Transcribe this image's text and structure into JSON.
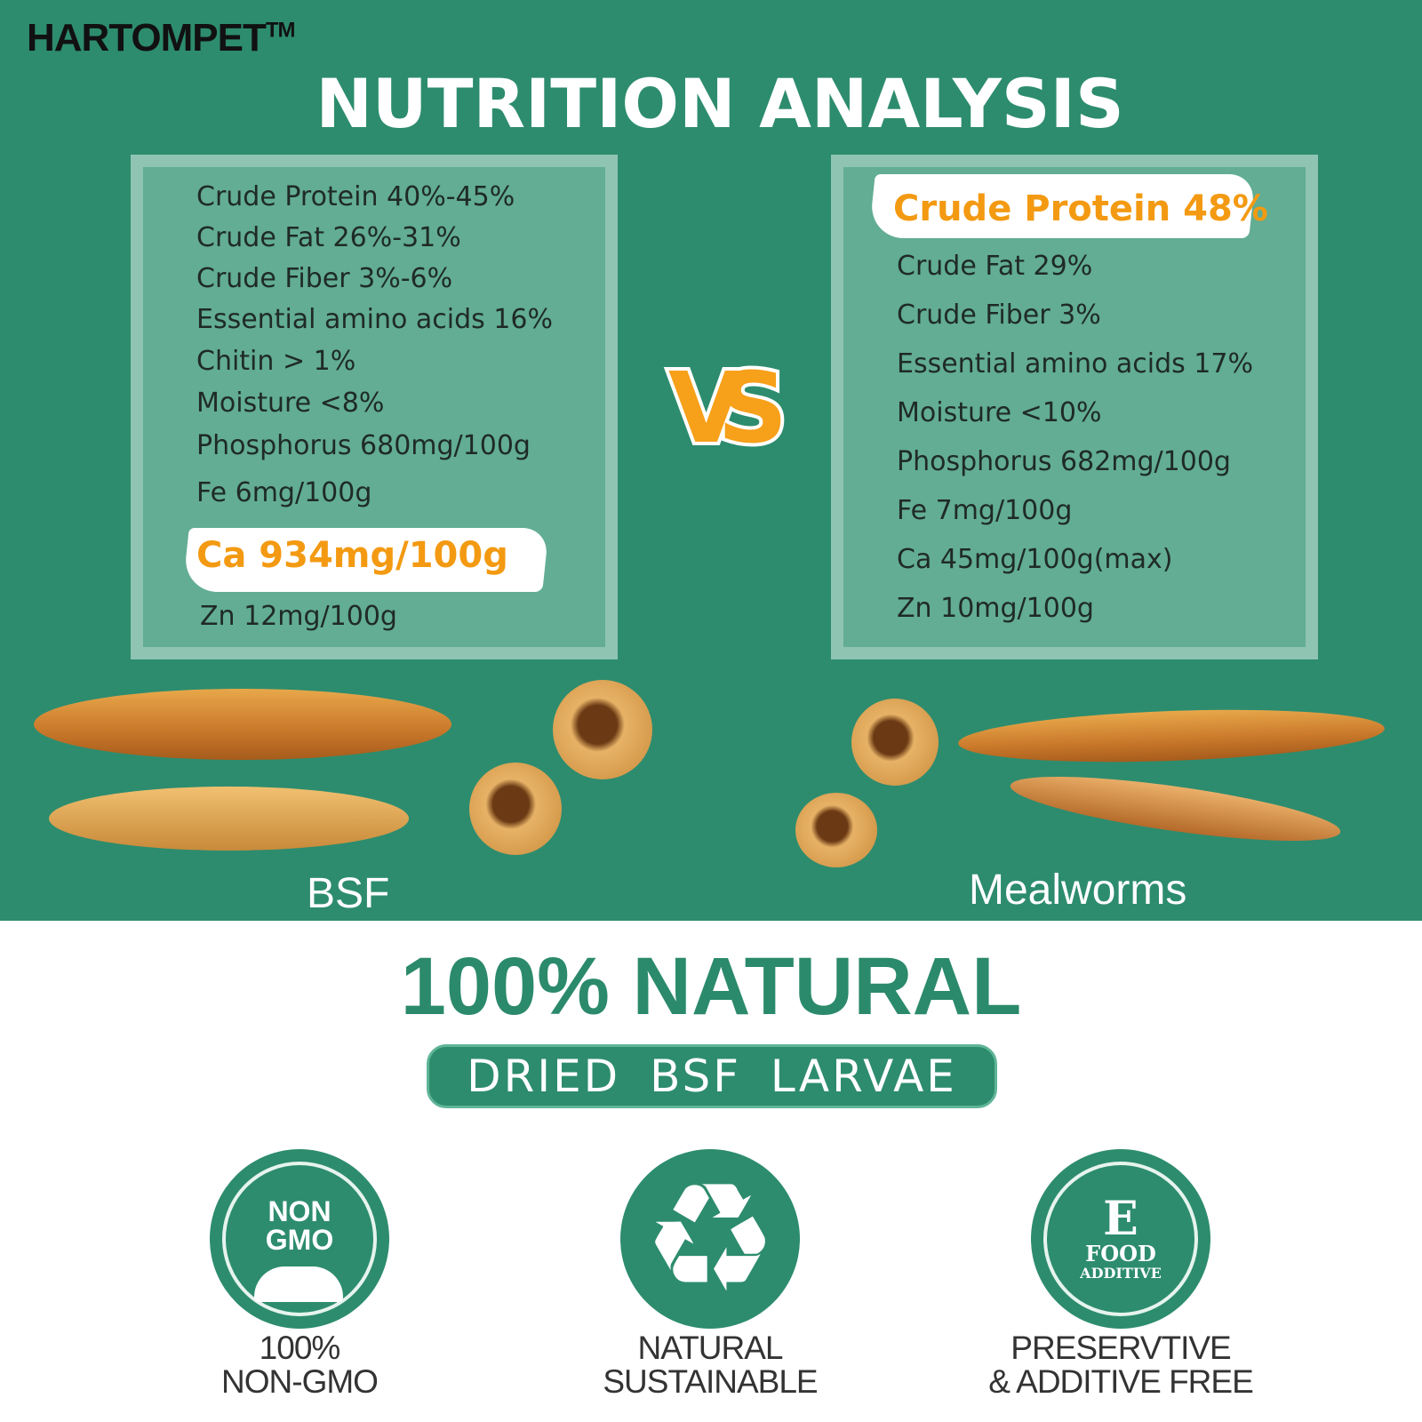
{
  "brand": {
    "name": "HARTOMPET",
    "tm": "TM"
  },
  "title": "NUTRITION ANALYSIS",
  "vs": "VS",
  "bsf": {
    "label": "BSF",
    "items": [
      "Crude Protein 40%-45%",
      "Crude Fat 26%-31%",
      "Crude Fiber 3%-6%",
      "Essential amino acids 16%",
      "Chitin  > 1%",
      "Moisture <8%",
      "Phosphorus 680mg/100g",
      "Fe 6mg/100g"
    ],
    "highlight": "Ca 934mg/100g",
    "last": "Zn 12mg/100g"
  },
  "mealworms": {
    "label": "Mealworms",
    "highlight": "Crude Protein 48%",
    "items": [
      "Crude Fat 29%",
      "Crude Fiber 3%",
      "Essential amino acids 17%",
      "Moisture <10%",
      "Phosphorus 682mg/100g",
      "Fe 7mg/100g",
      "Ca 45mg/100g(max)",
      "Zn 10mg/100g"
    ]
  },
  "natural": {
    "heading": "100% NATURAL",
    "sub": "DRIED  BSF  LARVAE"
  },
  "features": [
    {
      "icon": "non-gmo-icon",
      "badge": [
        "NON",
        "GMO"
      ],
      "caption": [
        "100%",
        "NON-GMO"
      ]
    },
    {
      "icon": "recycle-icon",
      "caption": [
        "NATURAL",
        "SUSTAINABLE"
      ]
    },
    {
      "icon": "food-additive-free-icon",
      "badge": [
        "E",
        "FOOD",
        "ADDITIVE"
      ],
      "caption": [
        "PRESERVTIVE",
        "& ADDITIVE FREE"
      ]
    }
  ],
  "colors": {
    "green": "#2d8c6e",
    "orange": "#f39a12",
    "box": "#62ad93"
  }
}
